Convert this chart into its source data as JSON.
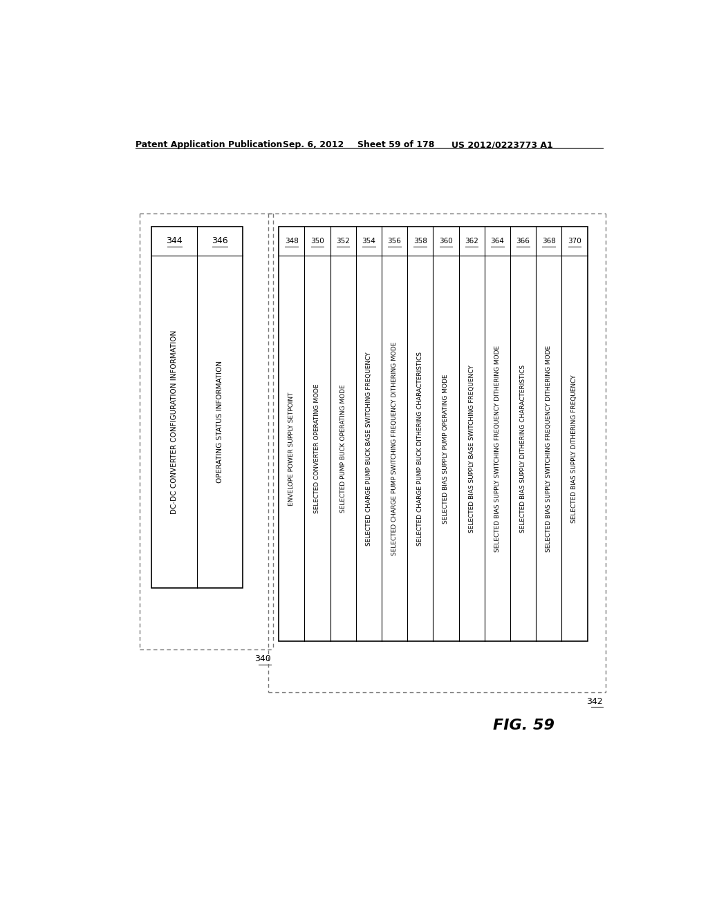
{
  "header_text": "Patent Application Publication",
  "header_date": "Sep. 6, 2012",
  "header_sheet": "Sheet 59 of 178",
  "header_patent": "US 2012/0223773 A1",
  "fig_label": "FIG. 59",
  "background_color": "#ffffff",
  "left_cols": [
    {
      "label": "344",
      "text": "DC-DC CONVERTER CONFIGURATION INFORMATION"
    },
    {
      "label": "346",
      "text": "OPERATING STATUS INFORMATION"
    }
  ],
  "left_outer_label": "340",
  "right_cols": [
    {
      "label": "348",
      "text": "ENVELOPE POWER SUPPLY SETPOINT"
    },
    {
      "label": "350",
      "text": "SELECTED CONVERTER OPERATING MODE"
    },
    {
      "label": "352",
      "text": "SELECTED PUMP BUCK OPERATING MODE"
    },
    {
      "label": "354",
      "text": "SELECTED CHARGE PUMP BUCK BASE SWITCHING FREQUENCY"
    },
    {
      "label": "356",
      "text": "SELECTED CHARGE PUMP SWITCHING FREQUENCY DITHERING MODE"
    },
    {
      "label": "358",
      "text": "SELECTED CHARGE PUMP BUCK DITHERING CHARACTERISTICS"
    },
    {
      "label": "360",
      "text": "SELECTED BIAS SUPPLY PUMP OPERATING MODE"
    },
    {
      "label": "362",
      "text": "SELECTED BIAS SUPPLY BASE SWITCHING FREQUENCY"
    },
    {
      "label": "364",
      "text": "SELECTED BIAS SUPPLY SWITCHING FREQUENCY DITHERING MODE"
    },
    {
      "label": "366",
      "text": "SELECTED BIAS SUPPLY DITHERING CHARACTERISTICS"
    },
    {
      "label": "368",
      "text": "SELECTED BIAS SUPPLY SWITCHING FREQUENCY DITHERING MODE"
    },
    {
      "label": "370",
      "text": "SELECTED BIAS SUPPLY DITHERING FREQUENCY"
    }
  ],
  "right_outer_label": "342"
}
